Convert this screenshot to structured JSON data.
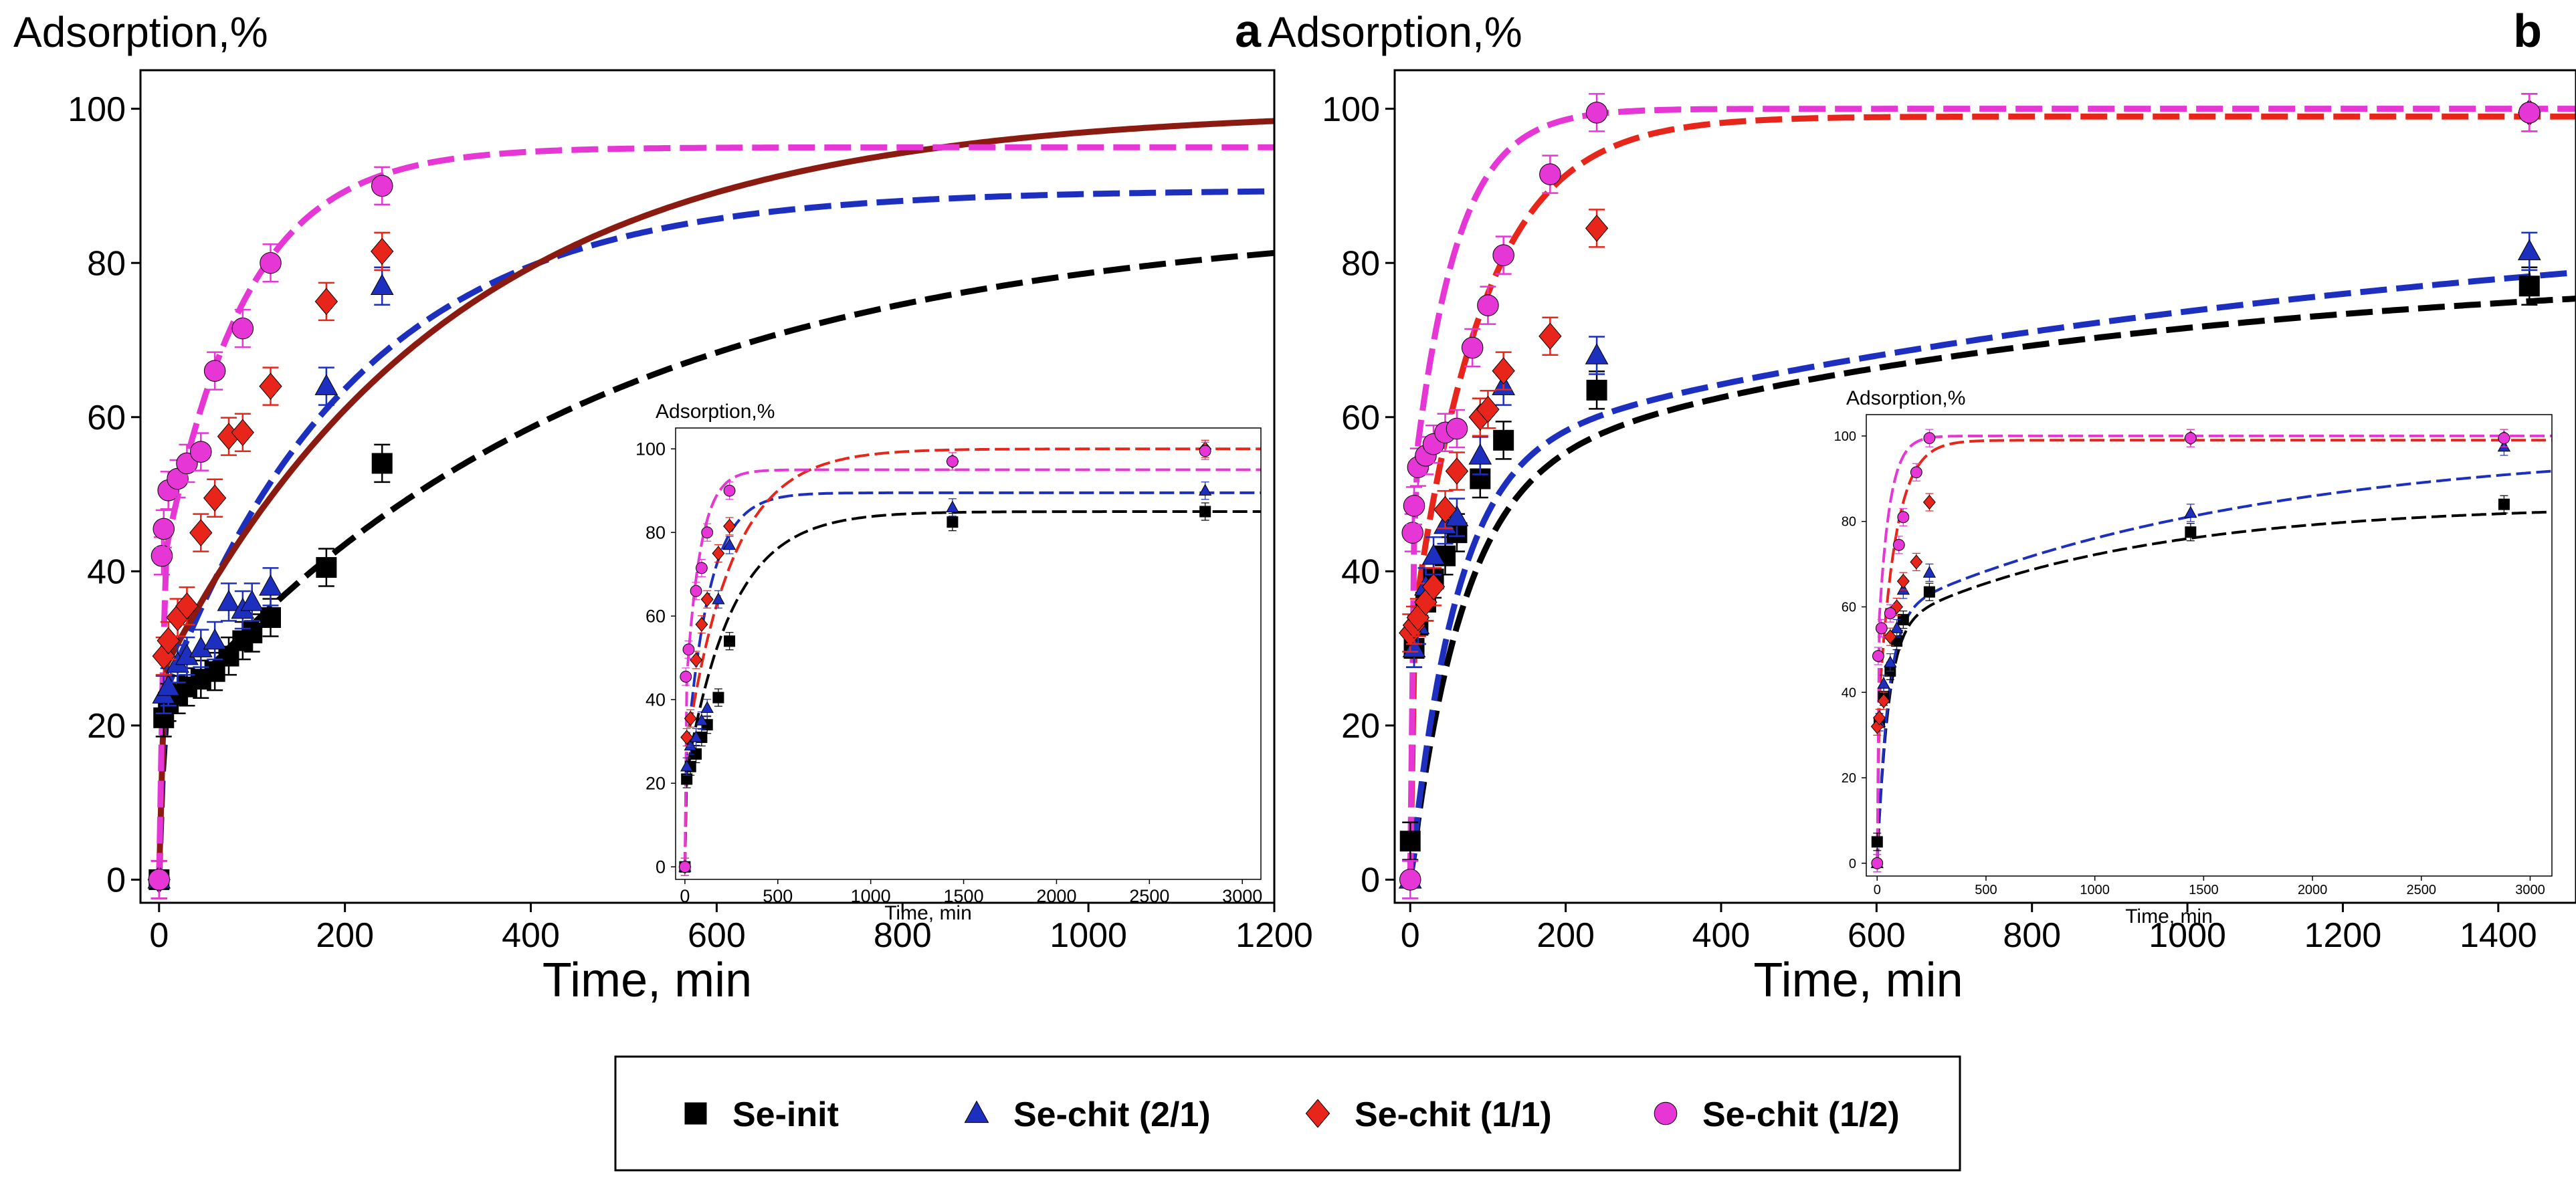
{
  "figure": {
    "legend": [
      {
        "label": "Se-init",
        "marker": "square",
        "color": "#000000"
      },
      {
        "label": "Se-chit (2/1)",
        "marker": "triangle",
        "color": "#1c2fbf"
      },
      {
        "label": "Se-chit (1/1)",
        "marker": "diamond",
        "color": "#e8251b"
      },
      {
        "label": "Se-chit (1/2)",
        "marker": "circle",
        "color": "#e636d6"
      }
    ],
    "colors": {
      "Se-init": "#000000",
      "Se-chit (2/1)": "#1c2fbf",
      "Se-chit (1/1)": "#e8251b",
      "Se-chit (1/2)": "#e636d6",
      "fit_1_1_a": "#8b1a10"
    }
  },
  "chart_data": [
    {
      "id": "a-main",
      "type": "scatter",
      "panel_letter": "a",
      "ylabel": "Adsorption,%",
      "xlabel": "Time, min",
      "xlim": [
        -20,
        1200
      ],
      "ylim": [
        -3,
        105
      ],
      "xticks": [
        0,
        200,
        400,
        600,
        800,
        1000,
        1200
      ],
      "yticks": [
        0,
        20,
        40,
        60,
        80,
        100
      ],
      "series": [
        {
          "name": "Se-init",
          "points": [
            [
              0,
              0
            ],
            [
              5,
              21
            ],
            [
              10,
              23
            ],
            [
              20,
              24
            ],
            [
              30,
              25
            ],
            [
              45,
              26
            ],
            [
              60,
              27
            ],
            [
              75,
              29
            ],
            [
              90,
              31
            ],
            [
              100,
              32
            ],
            [
              120,
              34
            ],
            [
              180,
              40.5
            ],
            [
              240,
              54
            ]
          ],
          "fit": {
            "A": 86,
            "k": 0.0022,
            "b": 20
          }
        },
        {
          "name": "Se-chit (2/1)",
          "points": [
            [
              0,
              0
            ],
            [
              5,
              24
            ],
            [
              10,
              25
            ],
            [
              20,
              28
            ],
            [
              30,
              29
            ],
            [
              45,
              30
            ],
            [
              60,
              31
            ],
            [
              75,
              36
            ],
            [
              90,
              35
            ],
            [
              100,
              36
            ],
            [
              120,
              38
            ],
            [
              180,
              64
            ],
            [
              240,
              77
            ]
          ],
          "fit": {
            "A": 89.5,
            "k": 0.0048,
            "b": 22
          }
        },
        {
          "name": "Se-chit (1/1)",
          "points": [
            [
              0,
              0
            ],
            [
              5,
              29
            ],
            [
              10,
              31
            ],
            [
              20,
              34
            ],
            [
              30,
              35.5
            ],
            [
              45,
              45
            ],
            [
              60,
              49.5
            ],
            [
              75,
              57.5
            ],
            [
              90,
              58
            ],
            [
              120,
              64
            ],
            [
              180,
              75
            ],
            [
              240,
              81.5
            ]
          ],
          "fit": {
            "A": 100,
            "k": 0.0032,
            "b": 26
          }
        },
        {
          "name": "Se-chit (1/2)",
          "points": [
            [
              0,
              0
            ],
            [
              3,
              42
            ],
            [
              5,
              45.5
            ],
            [
              10,
              50.5
            ],
            [
              20,
              52
            ],
            [
              30,
              54
            ],
            [
              45,
              55.5
            ],
            [
              60,
              66
            ],
            [
              90,
              71.5
            ],
            [
              120,
              80
            ],
            [
              240,
              90
            ]
          ],
          "fit": {
            "A": 95,
            "k": 0.0115,
            "b": 38
          }
        }
      ]
    },
    {
      "id": "a-inset",
      "type": "scatter",
      "panel_letter": "",
      "ylabel": "Adsorption,%",
      "xlabel": "Time, min",
      "xlim": [
        -50,
        3100
      ],
      "ylim": [
        -3,
        105
      ],
      "xticks": [
        0,
        500,
        1000,
        1500,
        2000,
        2500,
        3000
      ],
      "yticks": [
        0,
        20,
        40,
        60,
        80,
        100
      ],
      "series": [
        {
          "name": "Se-init",
          "points": [
            [
              0,
              0
            ],
            [
              10,
              21
            ],
            [
              30,
              24
            ],
            [
              60,
              27
            ],
            [
              90,
              31
            ],
            [
              120,
              34
            ],
            [
              180,
              40.5
            ],
            [
              240,
              54
            ],
            [
              1440,
              82.5
            ],
            [
              2800,
              85
            ]
          ],
          "fit": {
            "A": 85,
            "k": 0.004,
            "b": 20
          }
        },
        {
          "name": "Se-chit (2/1)",
          "points": [
            [
              0,
              0
            ],
            [
              10,
              24
            ],
            [
              30,
              29
            ],
            [
              60,
              31
            ],
            [
              90,
              35
            ],
            [
              120,
              38
            ],
            [
              180,
              64
            ],
            [
              240,
              77
            ],
            [
              1440,
              86
            ],
            [
              2800,
              90
            ]
          ],
          "fit": {
            "A": 89.5,
            "k": 0.008,
            "b": 22
          }
        },
        {
          "name": "Se-chit (1/1)",
          "points": [
            [
              0,
              0
            ],
            [
              10,
              31
            ],
            [
              30,
              35.5
            ],
            [
              60,
              49.5
            ],
            [
              90,
              58
            ],
            [
              120,
              64
            ],
            [
              180,
              75
            ],
            [
              240,
              81.5
            ],
            [
              1440,
              97
            ],
            [
              2800,
              100
            ]
          ],
          "fit": {
            "A": 100,
            "k": 0.004,
            "b": 26
          }
        },
        {
          "name": "Se-chit (1/2)",
          "points": [
            [
              0,
              0
            ],
            [
              5,
              45.5
            ],
            [
              20,
              52
            ],
            [
              60,
              66
            ],
            [
              90,
              71.5
            ],
            [
              120,
              80
            ],
            [
              240,
              90
            ],
            [
              1440,
              97
            ],
            [
              2800,
              99.5
            ]
          ],
          "fit": {
            "A": 95,
            "k": 0.013,
            "b": 38
          }
        }
      ]
    },
    {
      "id": "b-main",
      "type": "scatter",
      "panel_letter": "b",
      "ylabel": "Adsorption,%",
      "xlabel": "Time, min",
      "xlim": [
        -20,
        1500
      ],
      "ylim": [
        -3,
        105
      ],
      "xticks": [
        0,
        200,
        400,
        600,
        800,
        1000,
        1200,
        1400
      ],
      "yticks": [
        0,
        20,
        40,
        60,
        80,
        100
      ],
      "series": [
        {
          "name": "Se-init",
          "points": [
            [
              0,
              5
            ],
            [
              5,
              30
            ],
            [
              10,
              33
            ],
            [
              20,
              36
            ],
            [
              30,
              39
            ],
            [
              45,
              42
            ],
            [
              60,
              45
            ],
            [
              90,
              52
            ],
            [
              120,
              57
            ],
            [
              240,
              63.5
            ],
            [
              1440,
              77
            ]
          ],
          "fit": {
            "A": 52,
            "k": 0.015,
            "B": 28,
            "k2": 0.0012,
            "b": 0
          }
        },
        {
          "name": "Se-chit (2/1)",
          "points": [
            [
              0,
              0
            ],
            [
              5,
              30
            ],
            [
              10,
              33
            ],
            [
              20,
              38
            ],
            [
              30,
              42
            ],
            [
              45,
              46
            ],
            [
              60,
              47
            ],
            [
              90,
              55
            ],
            [
              120,
              64
            ],
            [
              240,
              68
            ],
            [
              1440,
              81.5
            ]
          ],
          "fit": {
            "A": 55,
            "k": 0.017,
            "B": 34,
            "k2": 0.0008,
            "b": 0
          }
        },
        {
          "name": "Se-chit (1/1)",
          "points": [
            [
              0,
              32
            ],
            [
              5,
              33
            ],
            [
              10,
              34
            ],
            [
              20,
              36
            ],
            [
              30,
              38
            ],
            [
              45,
              48
            ],
            [
              60,
              53
            ],
            [
              90,
              60
            ],
            [
              100,
              61
            ],
            [
              120,
              66
            ],
            [
              180,
              70.5
            ],
            [
              240,
              84.5
            ],
            [
              1440,
              99.5
            ]
          ],
          "fit": {
            "A": 99,
            "k": 0.011,
            "b": 30
          }
        },
        {
          "name": "Se-chit (1/2)",
          "points": [
            [
              0,
              0
            ],
            [
              3,
              45
            ],
            [
              5,
              48.5
            ],
            [
              10,
              53.5
            ],
            [
              20,
              55
            ],
            [
              30,
              56.5
            ],
            [
              45,
              58
            ],
            [
              60,
              58.5
            ],
            [
              80,
              69
            ],
            [
              100,
              74.5
            ],
            [
              120,
              81
            ],
            [
              180,
              91.5
            ],
            [
              240,
              99.5
            ],
            [
              1440,
              99.5
            ]
          ],
          "fit": {
            "A": 100,
            "k": 0.018,
            "b": 48
          }
        }
      ]
    },
    {
      "id": "b-inset",
      "type": "scatter",
      "panel_letter": "",
      "ylabel": "Adsorption,%",
      "xlabel": "Time, min",
      "xlim": [
        -50,
        3100
      ],
      "ylim": [
        -3,
        105
      ],
      "xticks": [
        0,
        500,
        1000,
        1500,
        2000,
        2500,
        3000
      ],
      "yticks": [
        0,
        20,
        40,
        60,
        80,
        100
      ],
      "series": [
        {
          "name": "Se-init",
          "points": [
            [
              0,
              5
            ],
            [
              10,
              33
            ],
            [
              30,
              39
            ],
            [
              60,
              45
            ],
            [
              90,
              52
            ],
            [
              120,
              57
            ],
            [
              240,
              63.5
            ],
            [
              1440,
              77.5
            ],
            [
              2880,
              84
            ]
          ],
          "fit": {
            "A": 55,
            "k": 0.02,
            "B": 29,
            "k2": 0.0009,
            "b": 0
          }
        },
        {
          "name": "Se-chit (2/1)",
          "points": [
            [
              0,
              0
            ],
            [
              10,
              33
            ],
            [
              30,
              42
            ],
            [
              60,
              47
            ],
            [
              90,
              55
            ],
            [
              120,
              64
            ],
            [
              240,
              68
            ],
            [
              1440,
              82
            ],
            [
              2880,
              97.5
            ]
          ],
          "fit": {
            "A": 58,
            "k": 0.02,
            "B": 40,
            "k2": 0.0006,
            "b": 0
          }
        },
        {
          "name": "Se-chit (1/1)",
          "points": [
            [
              0,
              32
            ],
            [
              10,
              34
            ],
            [
              30,
              38
            ],
            [
              60,
              53
            ],
            [
              90,
              60
            ],
            [
              120,
              66
            ],
            [
              180,
              70.5
            ],
            [
              240,
              84.5
            ],
            [
              1440,
              99.5
            ],
            [
              2880,
              99.5
            ]
          ],
          "fit": {
            "A": 99,
            "k": 0.013,
            "b": 30
          }
        },
        {
          "name": "Se-chit (1/2)",
          "points": [
            [
              0,
              0
            ],
            [
              5,
              48.5
            ],
            [
              20,
              55
            ],
            [
              60,
              58.5
            ],
            [
              100,
              74.5
            ],
            [
              120,
              81
            ],
            [
              180,
              91.5
            ],
            [
              240,
              99.5
            ],
            [
              1440,
              99.5
            ],
            [
              2880,
              99.5
            ]
          ],
          "fit": {
            "A": 100,
            "k": 0.02,
            "b": 48
          }
        }
      ]
    }
  ]
}
